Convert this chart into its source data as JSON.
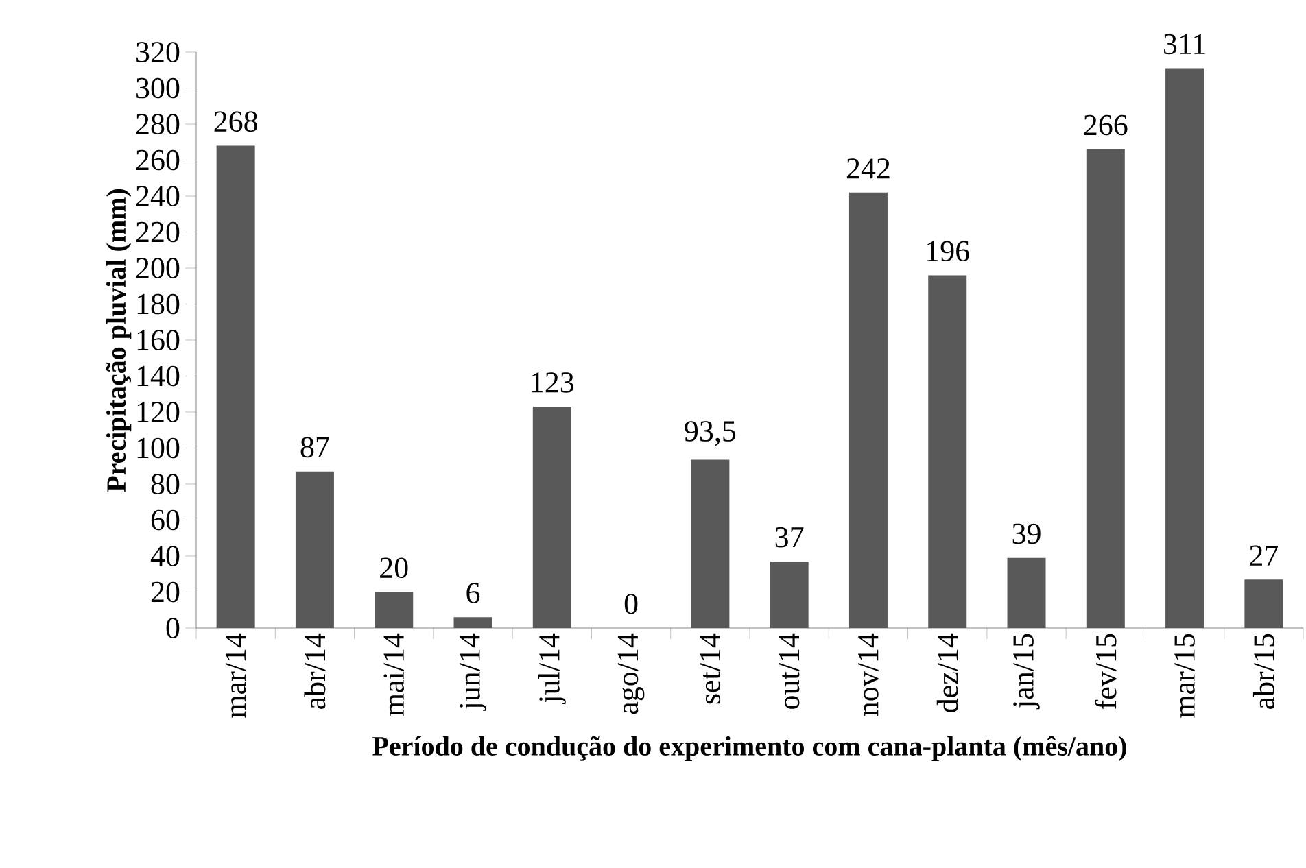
{
  "chart_data": {
    "type": "bar",
    "xlabel": "Período de condução do experimento com cana-planta (mês/ano)",
    "ylabel": "Precipitação pluvial (mm)",
    "categories": [
      "mar/14",
      "abr/14",
      "mai/14",
      "jun/14",
      "jul/14",
      "ago/14",
      "set/14",
      "out/14",
      "nov/14",
      "dez/14",
      "jan/15",
      "fev/15",
      "mar/15",
      "abr/15"
    ],
    "values": [
      268,
      87,
      20,
      6,
      123,
      0,
      93.5,
      37,
      242,
      196,
      39,
      266,
      311,
      27
    ],
    "value_labels": [
      "268",
      "87",
      "20",
      "6",
      "123",
      "0",
      "93,5",
      "37",
      "242",
      "196",
      "39",
      "266",
      "311",
      "27"
    ],
    "color": "#595959",
    "ylim": [
      0,
      320
    ],
    "yticks": [
      0,
      20,
      40,
      60,
      80,
      100,
      120,
      140,
      160,
      180,
      200,
      220,
      240,
      260,
      280,
      300,
      320
    ]
  }
}
